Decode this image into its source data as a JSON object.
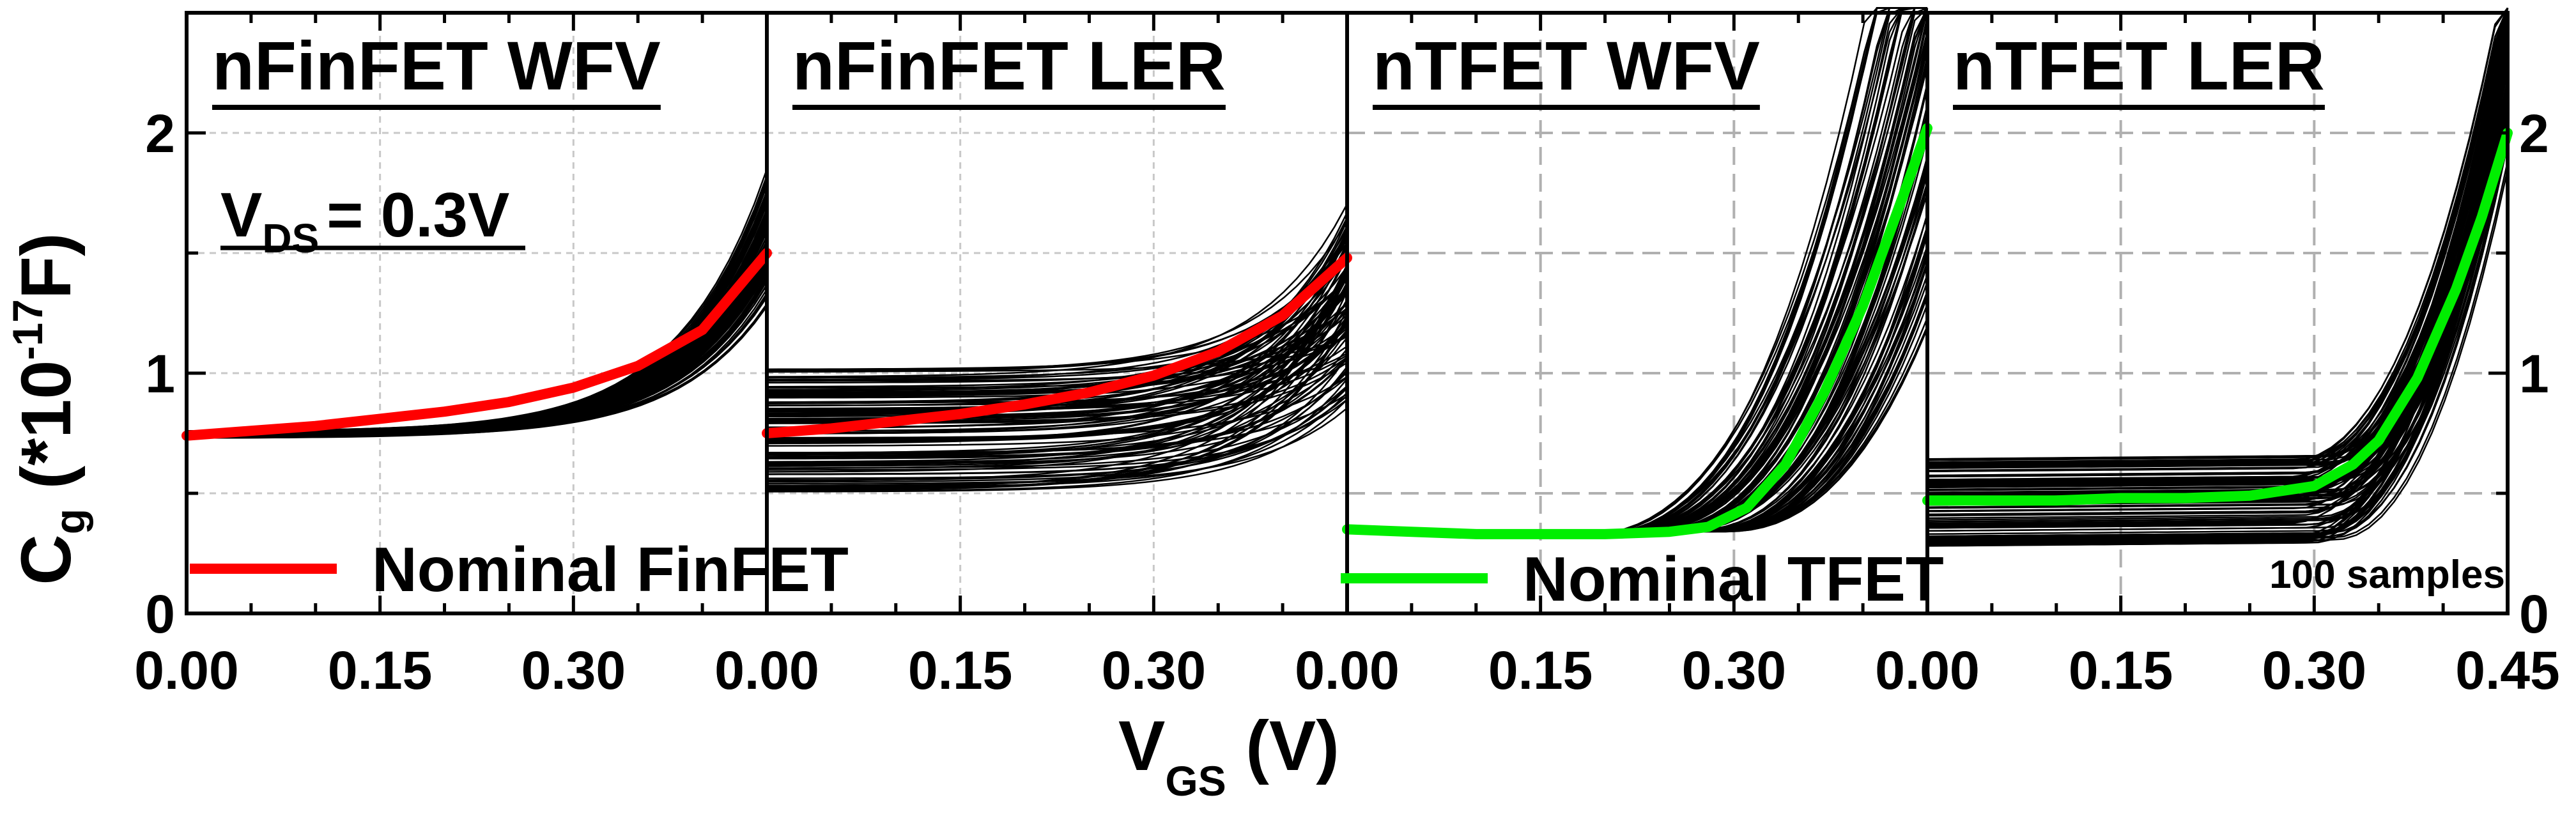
{
  "chart_data": {
    "type": "line",
    "xlabel": "V",
    "xlabel_sub": "GS",
    "xlabel_unit": " (V)",
    "ylabel": "C",
    "ylabel_sub": "g",
    "ylabel_open": " (*10",
    "ylabel_exp": "-17",
    "ylabel_close": "F)",
    "ylim": [
      0,
      2.5
    ],
    "yticks": [
      0,
      1,
      2
    ],
    "annotation_vds": {
      "base": "V",
      "sub": "DS",
      "rest": "= 0.3V"
    },
    "sample_note": "100 samples",
    "panels": [
      {
        "title": "nFinFET WFV",
        "xlim": [
          0,
          0.45
        ],
        "xtick_labels": [
          "0.00",
          "0.15",
          "0.30",
          "0.00"
        ],
        "nominal": {
          "name": "Nominal FinFET",
          "color": "#ff0000",
          "x": [
            0,
            0.05,
            0.1,
            0.15,
            0.2,
            0.25,
            0.3,
            0.35,
            0.4,
            0.45
          ],
          "y": [
            0.74,
            0.76,
            0.78,
            0.81,
            0.84,
            0.88,
            0.94,
            1.03,
            1.18,
            1.5
          ]
        },
        "samples": {
          "count": 100,
          "y_start_min": 0.73,
          "y_start_max": 0.76,
          "y_end_min": 1.2,
          "y_end_max": 1.9,
          "curve": "exp"
        }
      },
      {
        "title": "nFinFET LER",
        "xlim": [
          0,
          0.45
        ],
        "xtick_labels": [
          "0.00",
          "0.15",
          "0.30",
          "0.00"
        ],
        "nominal": {
          "name": "Nominal FinFET",
          "color": "#ff0000",
          "x": [
            0,
            0.05,
            0.1,
            0.15,
            0.2,
            0.25,
            0.3,
            0.35,
            0.4,
            0.45
          ],
          "y": [
            0.75,
            0.77,
            0.8,
            0.83,
            0.87,
            0.92,
            0.99,
            1.09,
            1.24,
            1.48
          ]
        },
        "samples": {
          "count": 100,
          "y_start_min": 0.5,
          "y_start_max": 1.02,
          "y_end_min": 0.8,
          "y_end_max": 1.77,
          "curve": "exp"
        }
      },
      {
        "title": "nTFET WFV",
        "xlim": [
          0,
          0.45
        ],
        "xtick_labels": [
          "0.00",
          "0.15",
          "0.30",
          "0.00"
        ],
        "nominal": {
          "name": "Nominal TFET",
          "color": "#00ee00",
          "x": [
            0,
            0.05,
            0.1,
            0.15,
            0.2,
            0.25,
            0.28,
            0.31,
            0.34,
            0.37,
            0.4,
            0.43,
            0.45
          ],
          "y": [
            0.35,
            0.34,
            0.33,
            0.33,
            0.33,
            0.34,
            0.36,
            0.44,
            0.62,
            0.92,
            1.28,
            1.72,
            2.02
          ]
        },
        "samples": {
          "count": 100,
          "y_start_min": 0.34,
          "y_start_max": 0.35,
          "onset_min": 0.19,
          "onset_max": 0.3,
          "y_end_min": 1.6,
          "y_end_max": 2.6,
          "curve": "tfet"
        }
      },
      {
        "title": "nTFET LER",
        "xlim": [
          0,
          0.45
        ],
        "xtick_labels": [
          "0.00",
          "0.15",
          "0.30",
          "0.45"
        ],
        "nominal": {
          "name": "Nominal TFET",
          "color": "#00ee00",
          "x": [
            0,
            0.05,
            0.1,
            0.15,
            0.2,
            0.25,
            0.3,
            0.33,
            0.35,
            0.38,
            0.41,
            0.43,
            0.45
          ],
          "y": [
            0.47,
            0.47,
            0.47,
            0.48,
            0.48,
            0.49,
            0.53,
            0.62,
            0.72,
            0.98,
            1.35,
            1.65,
            2.0
          ]
        },
        "samples": {
          "count": 100,
          "y_start_min": 0.28,
          "y_start_max": 0.65,
          "y_end_min": 2.0,
          "y_end_max": 2.6,
          "curve": "tfet2"
        }
      }
    ],
    "legends": [
      {
        "panel": 0,
        "label": "Nominal FinFET",
        "color": "#ff0000"
      },
      {
        "panel": 2,
        "label": "Nominal TFET",
        "color": "#00ee00"
      }
    ]
  }
}
